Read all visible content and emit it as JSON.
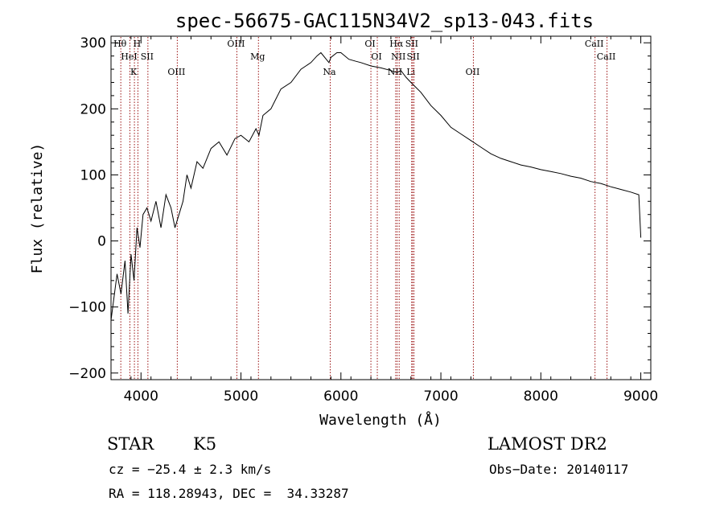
{
  "chart_data": {
    "type": "line",
    "title": "spec-56675-GAC115N34V2_sp13-043.fits",
    "xlabel": "Wavelength (Å)",
    "ylabel": "Flux (relative)",
    "xlim": [
      3700,
      9100
    ],
    "ylim": [
      -210,
      310
    ],
    "xticks": [
      4000,
      5000,
      6000,
      7000,
      8000,
      9000
    ],
    "yticks": [
      -200,
      -100,
      0,
      100,
      200,
      300
    ],
    "grid": false,
    "series": [
      {
        "color": "#000000",
        "x": [
          3700,
          3760,
          3800,
          3840,
          3870,
          3900,
          3930,
          3960,
          3990,
          4020,
          4060,
          4100,
          4150,
          4200,
          4250,
          4300,
          4340,
          4380,
          4420,
          4460,
          4500,
          4560,
          4620,
          4700,
          4780,
          4860,
          4940,
          5000,
          5080,
          5150,
          5180,
          5220,
          5300,
          5400,
          5500,
          5600,
          5700,
          5760,
          5800,
          5880,
          5900,
          5960,
          6000,
          6080,
          6150,
          6200,
          6300,
          6400,
          6500,
          6560,
          6600,
          6650,
          6700,
          6800,
          6900,
          7000,
          7100,
          7200,
          7300,
          7400,
          7500,
          7600,
          7700,
          7800,
          7900,
          8000,
          8100,
          8200,
          8300,
          8400,
          8500,
          8600,
          8700,
          8800,
          8900,
          8980,
          9000
        ],
        "y": [
          -120,
          -50,
          -80,
          -30,
          -110,
          -20,
          -60,
          20,
          -10,
          40,
          50,
          30,
          60,
          20,
          70,
          50,
          20,
          40,
          60,
          100,
          80,
          120,
          110,
          140,
          150,
          130,
          155,
          160,
          150,
          170,
          160,
          190,
          200,
          230,
          240,
          260,
          270,
          280,
          285,
          270,
          278,
          285,
          285,
          275,
          272,
          270,
          265,
          262,
          258,
          255,
          258,
          248,
          240,
          225,
          205,
          190,
          172,
          162,
          152,
          142,
          132,
          125,
          120,
          115,
          112,
          108,
          105,
          102,
          98,
          95,
          90,
          87,
          82,
          78,
          74,
          70,
          5
        ]
      }
    ],
    "lines": [
      {
        "x": 3798,
        "labels": [
          "Hθ"
        ]
      },
      {
        "x": 3889,
        "labels": [
          "HeI"
        ]
      },
      {
        "x": 3934,
        "labels": [
          "K"
        ]
      },
      {
        "x": 3969,
        "labels": [
          "H"
        ]
      },
      {
        "x": 4069,
        "labels": [
          "SII"
        ]
      },
      {
        "x": 4363,
        "labels": [
          "OIII"
        ]
      },
      {
        "x": 4959,
        "labels": [
          "OIII"
        ]
      },
      {
        "x": 5175,
        "labels": [
          "Mg"
        ]
      },
      {
        "x": 5893,
        "labels": [
          "Na"
        ]
      },
      {
        "x": 6300,
        "labels": [
          "OI"
        ]
      },
      {
        "x": 6364,
        "labels": [
          "OI"
        ]
      },
      {
        "x": 6548,
        "labels": [
          "NII"
        ]
      },
      {
        "x": 6563,
        "labels": [
          "Hα"
        ]
      },
      {
        "x": 6583,
        "labels": [
          "NII"
        ]
      },
      {
        "x": 6708,
        "labels": [
          "Li"
        ]
      },
      {
        "x": 6717,
        "labels": [
          "SII"
        ]
      },
      {
        "x": 6731,
        "labels": [
          "SII"
        ]
      },
      {
        "x": 7325,
        "labels": [
          "OII"
        ]
      },
      {
        "x": 8542,
        "labels": [
          "CaII"
        ]
      },
      {
        "x": 8662,
        "labels": [
          "CaII"
        ]
      }
    ]
  },
  "info": {
    "class": "STAR",
    "subclass": "K5",
    "cz": "cz = −25.4 ± 2.3 km/s",
    "radec": "RA = 118.28943, DEC =  34.33287",
    "survey": "LAMOST DR2",
    "obsdate": "Obs−Date: 20140117"
  }
}
